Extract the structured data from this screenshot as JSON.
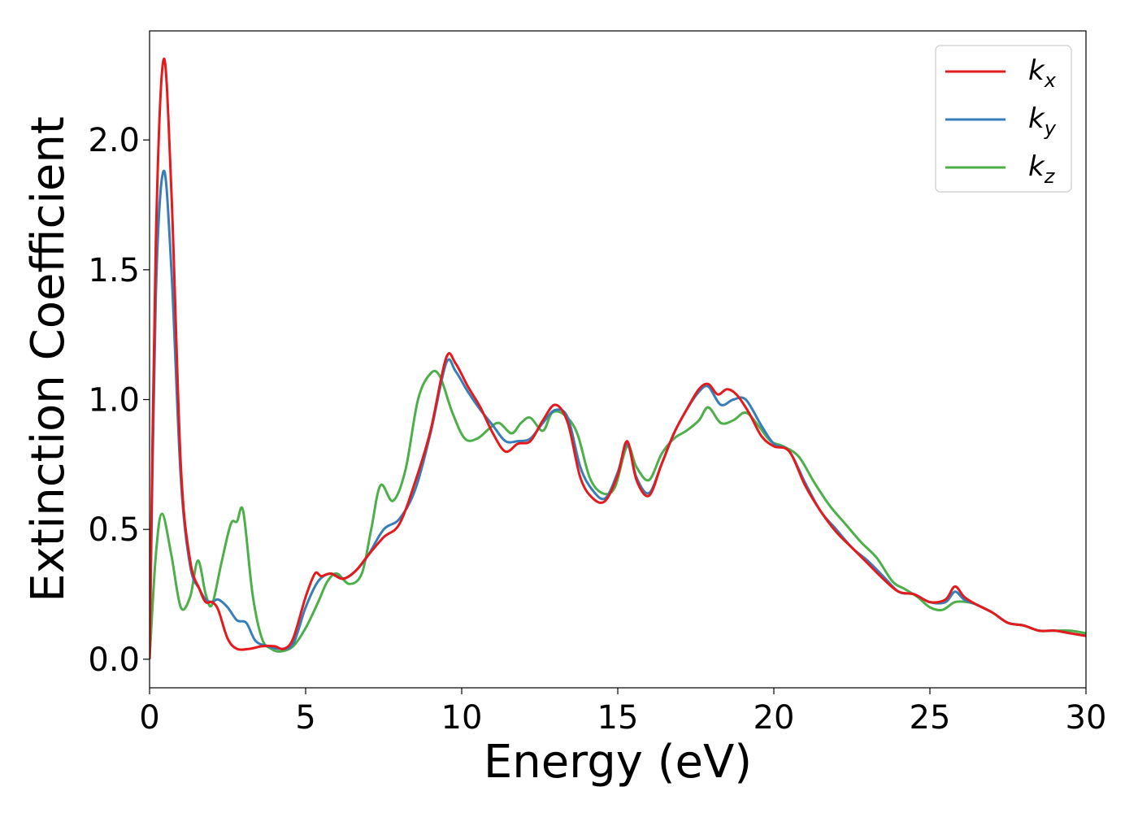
{
  "chart_data": {
    "type": "line",
    "xlabel": "Energy (eV)",
    "ylabel": "Extinction Coefficient",
    "xlim": [
      0,
      30
    ],
    "ylim": [
      -0.11,
      2.42
    ],
    "xticks": [
      0,
      5,
      10,
      15,
      20,
      25,
      30
    ],
    "xtick_labels": [
      "0",
      "5",
      "10",
      "15",
      "20",
      "25",
      "30"
    ],
    "yticks": [
      0.0,
      0.5,
      1.0,
      1.5,
      2.0
    ],
    "ytick_labels": [
      "0.0",
      "0.5",
      "1.0",
      "1.5",
      "2.0"
    ],
    "grid": false,
    "legend_position": "top-right",
    "series": [
      {
        "name": "k",
        "subscript": "x",
        "color": "#e41a1c",
        "x": [
          0,
          0.2,
          0.45,
          0.7,
          1.0,
          1.3,
          1.6,
          1.8,
          2.0,
          2.2,
          2.5,
          2.8,
          3.2,
          3.6,
          4.0,
          4.3,
          4.6,
          5.0,
          5.3,
          5.5,
          5.8,
          6.2,
          6.6,
          7.0,
          7.5,
          8.0,
          8.5,
          9.0,
          9.5,
          9.8,
          10.2,
          10.6,
          11.0,
          11.4,
          11.8,
          12.2,
          12.6,
          13.0,
          13.4,
          13.8,
          14.2,
          14.6,
          15.0,
          15.3,
          15.6,
          16.0,
          16.4,
          16.8,
          17.2,
          17.6,
          17.9,
          18.2,
          18.5,
          18.8,
          19.2,
          19.6,
          20.0,
          20.5,
          21.0,
          21.5,
          22.0,
          22.5,
          23.0,
          23.5,
          24.0,
          24.5,
          25.0,
          25.5,
          25.8,
          26.1,
          26.5,
          27.0,
          27.5,
          28.0,
          28.5,
          29.0,
          29.5,
          30.0
        ],
        "values": [
          0.0,
          1.6,
          2.31,
          1.8,
          0.75,
          0.38,
          0.27,
          0.22,
          0.22,
          0.19,
          0.08,
          0.04,
          0.04,
          0.05,
          0.05,
          0.04,
          0.08,
          0.24,
          0.33,
          0.32,
          0.33,
          0.31,
          0.34,
          0.4,
          0.47,
          0.52,
          0.68,
          0.88,
          1.16,
          1.14,
          1.05,
          0.97,
          0.87,
          0.8,
          0.83,
          0.84,
          0.92,
          0.98,
          0.91,
          0.7,
          0.62,
          0.61,
          0.71,
          0.84,
          0.69,
          0.63,
          0.75,
          0.87,
          0.96,
          1.04,
          1.06,
          1.02,
          1.04,
          1.02,
          0.95,
          0.86,
          0.82,
          0.8,
          0.67,
          0.57,
          0.49,
          0.43,
          0.37,
          0.31,
          0.26,
          0.25,
          0.22,
          0.23,
          0.28,
          0.24,
          0.21,
          0.18,
          0.14,
          0.13,
          0.11,
          0.11,
          0.1,
          0.09
        ]
      },
      {
        "name": "k",
        "subscript": "y",
        "color": "#377eb8",
        "x": [
          0,
          0.2,
          0.45,
          0.7,
          1.0,
          1.3,
          1.6,
          1.8,
          2.0,
          2.2,
          2.5,
          2.8,
          3.1,
          3.4,
          3.8,
          4.2,
          4.6,
          5.0,
          5.4,
          5.8,
          6.2,
          6.6,
          7.0,
          7.5,
          8.0,
          8.5,
          9.0,
          9.5,
          9.8,
          10.2,
          10.6,
          11.0,
          11.4,
          11.8,
          12.2,
          12.6,
          13.0,
          13.4,
          13.8,
          14.2,
          14.6,
          15.0,
          15.3,
          15.6,
          16.0,
          16.4,
          16.8,
          17.2,
          17.6,
          17.9,
          18.3,
          18.7,
          19.1,
          19.6,
          20.0,
          20.5,
          21.0,
          21.5,
          22.0,
          22.5,
          23.0,
          23.5,
          24.0,
          24.5,
          25.0,
          25.5,
          25.8,
          26.1,
          26.5,
          27.0,
          27.5,
          28.0,
          28.5,
          29.0,
          29.5,
          30.0
        ],
        "values": [
          0.0,
          1.4,
          1.88,
          1.5,
          0.7,
          0.36,
          0.27,
          0.23,
          0.22,
          0.23,
          0.2,
          0.15,
          0.14,
          0.07,
          0.05,
          0.04,
          0.06,
          0.2,
          0.3,
          0.33,
          0.31,
          0.34,
          0.4,
          0.5,
          0.54,
          0.65,
          0.87,
          1.14,
          1.11,
          1.03,
          0.96,
          0.9,
          0.84,
          0.84,
          0.85,
          0.91,
          0.96,
          0.93,
          0.74,
          0.65,
          0.62,
          0.72,
          0.83,
          0.7,
          0.64,
          0.75,
          0.87,
          0.96,
          1.03,
          1.05,
          0.98,
          1.0,
          1.0,
          0.9,
          0.83,
          0.8,
          0.68,
          0.57,
          0.5,
          0.43,
          0.38,
          0.32,
          0.26,
          0.25,
          0.22,
          0.22,
          0.26,
          0.23,
          0.21,
          0.18,
          0.14,
          0.13,
          0.11,
          0.11,
          0.1,
          0.09
        ]
      },
      {
        "name": "k",
        "subscript": "z",
        "color": "#4daf4a",
        "x": [
          0,
          0.2,
          0.4,
          0.7,
          1.0,
          1.3,
          1.55,
          1.8,
          2.0,
          2.3,
          2.6,
          2.8,
          3.0,
          3.3,
          3.6,
          3.9,
          4.2,
          4.6,
          5.0,
          5.4,
          5.7,
          6.0,
          6.4,
          6.8,
          7.1,
          7.4,
          7.8,
          8.2,
          8.6,
          9.0,
          9.3,
          9.7,
          10.1,
          10.5,
          10.9,
          11.2,
          11.6,
          11.9,
          12.2,
          12.6,
          12.9,
          13.3,
          13.7,
          14.1,
          14.5,
          14.9,
          15.3,
          15.6,
          16.0,
          16.4,
          16.8,
          17.2,
          17.6,
          17.9,
          18.3,
          18.7,
          19.1,
          19.5,
          19.9,
          20.3,
          20.8,
          21.3,
          21.8,
          22.3,
          22.8,
          23.3,
          23.8,
          24.2,
          24.6,
          25.0,
          25.4,
          25.8,
          26.2,
          26.5,
          27.0,
          27.5,
          28.0,
          28.5,
          29.0,
          29.5,
          30.0
        ],
        "values": [
          0.0,
          0.4,
          0.56,
          0.4,
          0.2,
          0.24,
          0.38,
          0.25,
          0.21,
          0.37,
          0.52,
          0.53,
          0.57,
          0.25,
          0.08,
          0.04,
          0.03,
          0.05,
          0.12,
          0.22,
          0.3,
          0.33,
          0.29,
          0.33,
          0.5,
          0.67,
          0.61,
          0.73,
          1.0,
          1.1,
          1.09,
          0.95,
          0.85,
          0.85,
          0.89,
          0.91,
          0.87,
          0.91,
          0.93,
          0.88,
          0.95,
          0.94,
          0.87,
          0.7,
          0.64,
          0.66,
          0.82,
          0.74,
          0.69,
          0.79,
          0.85,
          0.88,
          0.92,
          0.97,
          0.91,
          0.92,
          0.95,
          0.9,
          0.84,
          0.82,
          0.78,
          0.68,
          0.59,
          0.52,
          0.45,
          0.39,
          0.3,
          0.27,
          0.24,
          0.2,
          0.19,
          0.22,
          0.22,
          0.21,
          0.18,
          0.14,
          0.13,
          0.11,
          0.11,
          0.11,
          0.1
        ]
      }
    ]
  }
}
